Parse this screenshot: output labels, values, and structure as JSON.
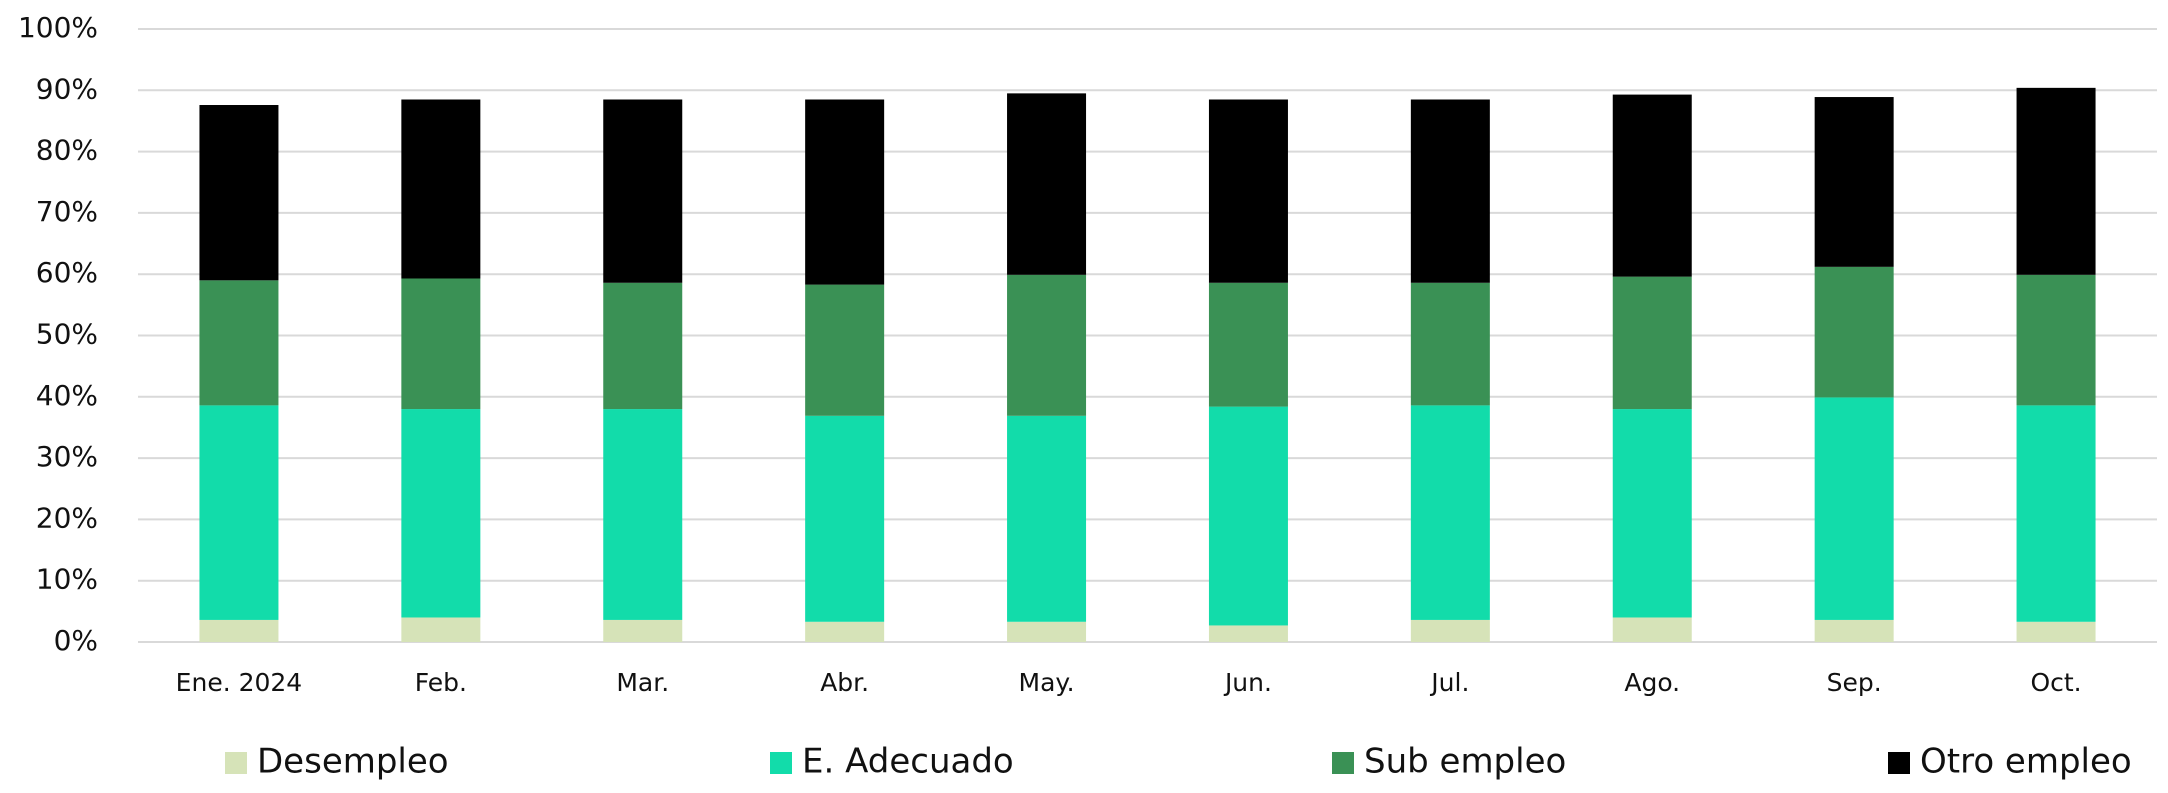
{
  "chart_data": {
    "type": "bar",
    "stacked": true,
    "categories": [
      "Ene. 2024",
      "Feb.",
      "Mar.",
      "Abr.",
      "May.",
      "Jun.",
      "Jul.",
      "Ago.",
      "Sep.",
      "Oct."
    ],
    "series": [
      {
        "name": "Desempleo",
        "color": "#d6e3b8",
        "values": [
          3.6,
          4.0,
          3.6,
          3.3,
          3.3,
          2.7,
          3.6,
          4.0,
          3.6,
          3.3
        ]
      },
      {
        "name": "E. Adecuado",
        "color": "#12dcaa",
        "values": [
          35.0,
          34.0,
          34.4,
          33.6,
          33.6,
          35.7,
          35.0,
          34.0,
          36.3,
          35.3
        ]
      },
      {
        "name": "Sub empleo",
        "color": "#3a9155",
        "values": [
          20.4,
          21.3,
          20.6,
          21.4,
          23.0,
          20.2,
          20.0,
          21.6,
          21.3,
          21.3
        ]
      },
      {
        "name": "Otro empleo",
        "color": "#000000",
        "values": [
          28.6,
          29.2,
          29.9,
          30.2,
          29.6,
          29.9,
          29.9,
          29.7,
          27.7,
          30.5
        ]
      }
    ],
    "ylim": [
      0,
      100
    ],
    "yticks": [
      {
        "value": 0,
        "label": "0%"
      },
      {
        "value": 10,
        "label": "10%"
      },
      {
        "value": 20,
        "label": "20%"
      },
      {
        "value": 30,
        "label": "30%"
      },
      {
        "value": 40,
        "label": "40%"
      },
      {
        "value": 50,
        "label": "50%"
      },
      {
        "value": 60,
        "label": "60%"
      },
      {
        "value": 70,
        "label": "70%"
      },
      {
        "value": 80,
        "label": "80%"
      },
      {
        "value": 90,
        "label": "90%"
      },
      {
        "value": 100,
        "label": "100%"
      }
    ],
    "grid": true,
    "legend": "bottom"
  }
}
